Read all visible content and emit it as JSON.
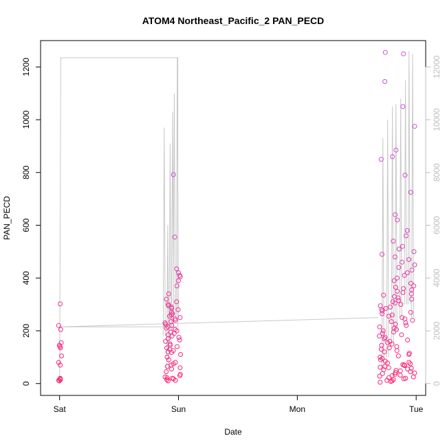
{
  "chart_data": {
    "type": "scatter",
    "title": "ATOM4 Northeast_Pacific_2 PAN_PECD",
    "xlabel": "Date",
    "ylabel": "PAN_PECD",
    "x_ticks": [
      {
        "label": "Sat",
        "day": 0
      },
      {
        "label": "Sun",
        "day": 1
      },
      {
        "label": "Mon",
        "day": 2
      },
      {
        "label": "Tue",
        "day": 3
      }
    ],
    "xlim_days": [
      -0.16,
      3.08
    ],
    "ylim": [
      -45,
      1300
    ],
    "y_ticks": [
      0,
      200,
      400,
      600,
      800,
      1000,
      1200
    ],
    "y2lim": [
      -450,
      13000
    ],
    "y2_ticks": [
      0,
      2000,
      4000,
      6000,
      8000,
      10000,
      12000
    ],
    "colors": {
      "points_low": "#c94fd6",
      "points_high": "#ff1f6e",
      "line": "#c8c8c8",
      "axis": "#000000",
      "axis_right": "#bdbdbd"
    },
    "series": [
      {
        "group": "Sat",
        "x_range_days": [
          -0.01,
          0.02
        ],
        "values": [
          20,
          15,
          12,
          10,
          18,
          70,
          80,
          105,
          135,
          140,
          145,
          155,
          205,
          220,
          302
        ]
      },
      {
        "group": "Sun",
        "x_range_days": [
          0.88,
          1.02
        ],
        "values": [
          10,
          12,
          15,
          18,
          20,
          22,
          25,
          30,
          35,
          45,
          55,
          60,
          65,
          70,
          75,
          80,
          90,
          100,
          110,
          118,
          120,
          125,
          130,
          135,
          140,
          145,
          150,
          160,
          165,
          170,
          175,
          180,
          185,
          190,
          195,
          200,
          205,
          210,
          215,
          220,
          225,
          230,
          235,
          240,
          245,
          250,
          255,
          260,
          265,
          270,
          280,
          285,
          290,
          295,
          300,
          310,
          320,
          340,
          370,
          390,
          405,
          410,
          420,
          435,
          555,
          792
        ]
      },
      {
        "group": "Tue",
        "x_range_days": [
          2.69,
          2.99
        ],
        "values": [
          5,
          8,
          10,
          12,
          15,
          18,
          20,
          22,
          25,
          28,
          30,
          32,
          35,
          38,
          40,
          42,
          45,
          48,
          50,
          52,
          55,
          58,
          60,
          62,
          65,
          68,
          70,
          72,
          75,
          78,
          80,
          85,
          90,
          95,
          100,
          105,
          110,
          115,
          120,
          125,
          130,
          135,
          140,
          145,
          150,
          155,
          160,
          165,
          170,
          175,
          180,
          185,
          190,
          195,
          200,
          205,
          210,
          215,
          220,
          225,
          230,
          235,
          240,
          245,
          250,
          255,
          260,
          265,
          270,
          275,
          280,
          285,
          290,
          295,
          300,
          305,
          310,
          315,
          320,
          325,
          330,
          335,
          340,
          345,
          350,
          355,
          360,
          365,
          370,
          380,
          390,
          400,
          410,
          420,
          430,
          440,
          450,
          460,
          470,
          480,
          490,
          500,
          510,
          520,
          540,
          560,
          580,
          620,
          640,
          725,
          790,
          850,
          860,
          885,
          975,
          1050,
          1145,
          1250,
          1255
        ]
      }
    ],
    "secondary_line": {
      "axis": "right",
      "points": [
        [
          0.0,
          0
        ],
        [
          0.01,
          12350
        ],
        [
          0.995,
          12350
        ],
        [
          0.995,
          2150
        ],
        [
          1.0,
          2150
        ],
        [
          0.0,
          2150
        ],
        [
          2.68,
          2500
        ]
      ],
      "spikes": [
        {
          "day": 0.88,
          "peak": 9700,
          "base": 1800
        },
        {
          "day": 0.91,
          "peak": 6000,
          "base": 500
        },
        {
          "day": 0.93,
          "peak": 9100,
          "base": 1500
        },
        {
          "day": 0.95,
          "peak": 10300,
          "base": 2000
        },
        {
          "day": 0.965,
          "peak": 11000,
          "base": 2500
        },
        {
          "day": 0.99,
          "peak": 12350,
          "base": 2500
        },
        {
          "day": 2.72,
          "peak": 9300,
          "base": 500
        },
        {
          "day": 2.76,
          "peak": 10000,
          "base": 1000
        },
        {
          "day": 2.8,
          "peak": 10500,
          "base": 1500
        },
        {
          "day": 2.83,
          "peak": 10600,
          "base": 2000
        },
        {
          "day": 2.87,
          "peak": 10800,
          "base": 2500
        },
        {
          "day": 2.91,
          "peak": 11500,
          "base": 3000
        },
        {
          "day": 2.94,
          "peak": 12600,
          "base": 3000
        },
        {
          "day": 2.97,
          "peak": 12500,
          "base": 2500
        }
      ]
    }
  }
}
